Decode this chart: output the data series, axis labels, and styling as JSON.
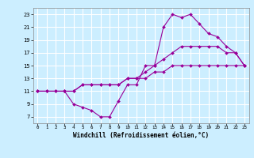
{
  "bg_color": "#cceeff",
  "grid_color": "#ffffff",
  "line_color": "#990099",
  "xlabel": "Windchill (Refroidissement éolien,°C)",
  "xlim": [
    -0.5,
    23.5
  ],
  "ylim": [
    6,
    24
  ],
  "xticks": [
    0,
    1,
    2,
    3,
    4,
    5,
    6,
    7,
    8,
    9,
    10,
    11,
    12,
    13,
    14,
    15,
    16,
    17,
    18,
    19,
    20,
    21,
    22,
    23
  ],
  "yticks": [
    7,
    9,
    11,
    13,
    15,
    17,
    19,
    21,
    23
  ],
  "line1_x": [
    0,
    1,
    2,
    3,
    4,
    5,
    6,
    7,
    8,
    9,
    10,
    11,
    12,
    13,
    14,
    15,
    16,
    17,
    18,
    19,
    20,
    21,
    22,
    23
  ],
  "line1_y": [
    11,
    11,
    11,
    11,
    11,
    12,
    12,
    12,
    12,
    12,
    13,
    13,
    13,
    14,
    14,
    15,
    15,
    15,
    15,
    15,
    15,
    15,
    15,
    15
  ],
  "line2_x": [
    0,
    1,
    2,
    3,
    4,
    5,
    6,
    7,
    8,
    9,
    10,
    11,
    12,
    13,
    14,
    15,
    16,
    17,
    18,
    19,
    20,
    21,
    22,
    23
  ],
  "line2_y": [
    11,
    11,
    11,
    11,
    11,
    12,
    12,
    12,
    12,
    12,
    13,
    13,
    14,
    15,
    16,
    17,
    18,
    18,
    18,
    18,
    18,
    17,
    17,
    15
  ],
  "line3_x": [
    0,
    3,
    4,
    5,
    6,
    7,
    8,
    9,
    10,
    11,
    12,
    13,
    14,
    15,
    16,
    17,
    18,
    19,
    20,
    21,
    22,
    23
  ],
  "line3_y": [
    11,
    11,
    9,
    8.5,
    8,
    7,
    7,
    9.5,
    12,
    12,
    15,
    15,
    21,
    23,
    22.5,
    23,
    21.5,
    20,
    19.5,
    18,
    17,
    15
  ]
}
